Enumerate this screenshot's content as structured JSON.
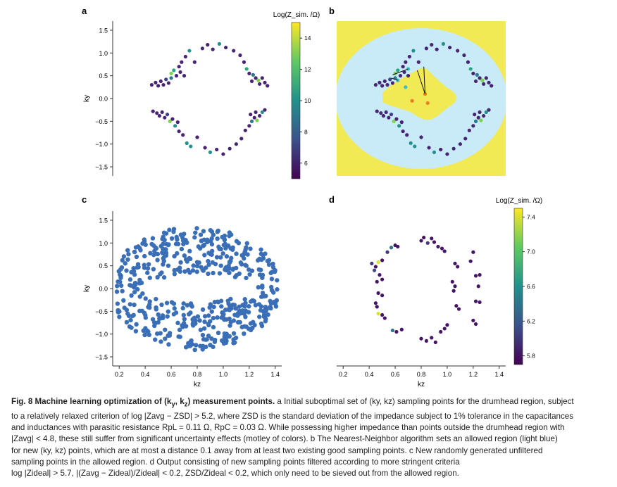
{
  "panels": {
    "a": {
      "label": "a",
      "colorbar_title": "Log(Z_sim. /Ω)",
      "colorbar_ticks": [
        "14",
        "12",
        "10",
        "8",
        "6"
      ]
    },
    "b": {
      "label": "b"
    },
    "c": {
      "label": "c"
    },
    "d": {
      "label": "d",
      "colorbar_title": "Log(Z_sim. /Ω)",
      "colorbar_ticks": [
        "7.4",
        "7.0",
        "6.6",
        "6.2",
        "5.8"
      ]
    }
  },
  "axes": {
    "ylabel": "ky",
    "xlabel": "kz",
    "yticks": [
      "1.5",
      "1.0",
      "0.5",
      "0.0",
      "−0.5",
      "−1.0",
      "−1.5"
    ],
    "xticks_c": [
      "0.2",
      "0.4",
      "0.6",
      "0.8",
      "1.0",
      "1.2",
      "1.4"
    ],
    "xticks_d": [
      "0.2",
      "0.4",
      "0.6",
      "0.8",
      "1.0",
      "1.2",
      "1.4"
    ]
  },
  "colors": {
    "allowed_region": "#c9ebf7",
    "background_region": "#f2ea55",
    "new_points": "#3a6fb8",
    "viridis_low": "#3b1f5e",
    "viridis_high": "#f6e61f"
  },
  "chart_data": [
    {
      "panel": "a",
      "type": "scatter",
      "title": "",
      "xlabel": "",
      "ylabel": "ky",
      "xlim": [
        0.15,
        1.45
      ],
      "ylim": [
        -1.7,
        1.7
      ],
      "color_scale": {
        "min": 5,
        "max": 15
      },
      "points": [
        {
          "x": 0.45,
          "y": 0.3,
          "c": 6
        },
        {
          "x": 0.48,
          "y": 0.35,
          "c": 6
        },
        {
          "x": 0.5,
          "y": 0.28,
          "c": 6
        },
        {
          "x": 0.52,
          "y": 0.38,
          "c": 6
        },
        {
          "x": 0.54,
          "y": 0.3,
          "c": 6
        },
        {
          "x": 0.56,
          "y": 0.42,
          "c": 7
        },
        {
          "x": 0.58,
          "y": 0.34,
          "c": 6
        },
        {
          "x": 0.6,
          "y": 0.45,
          "c": 9
        },
        {
          "x": 0.6,
          "y": 0.55,
          "c": 13
        },
        {
          "x": 0.62,
          "y": 0.62,
          "c": 11
        },
        {
          "x": 0.64,
          "y": 0.5,
          "c": 6
        },
        {
          "x": 0.66,
          "y": 0.7,
          "c": 6
        },
        {
          "x": 0.67,
          "y": 0.58,
          "c": 6
        },
        {
          "x": 0.68,
          "y": 0.8,
          "c": 6
        },
        {
          "x": 0.7,
          "y": 0.5,
          "c": 6
        },
        {
          "x": 0.71,
          "y": 0.92,
          "c": 6
        },
        {
          "x": 0.74,
          "y": 1.05,
          "c": 10
        },
        {
          "x": 0.78,
          "y": 0.8,
          "c": 6
        },
        {
          "x": 0.84,
          "y": 1.1,
          "c": 6
        },
        {
          "x": 0.88,
          "y": 1.18,
          "c": 6
        },
        {
          "x": 0.92,
          "y": 1.08,
          "c": 6
        },
        {
          "x": 0.97,
          "y": 1.2,
          "c": 10
        },
        {
          "x": 1.02,
          "y": 1.12,
          "c": 6
        },
        {
          "x": 1.08,
          "y": 1.05,
          "c": 6
        },
        {
          "x": 1.13,
          "y": 0.95,
          "c": 6
        },
        {
          "x": 1.16,
          "y": 0.8,
          "c": 6
        },
        {
          "x": 1.18,
          "y": 0.65,
          "c": 11
        },
        {
          "x": 1.2,
          "y": 0.55,
          "c": 6
        },
        {
          "x": 1.23,
          "y": 0.52,
          "c": 9
        },
        {
          "x": 1.25,
          "y": 0.45,
          "c": 6
        },
        {
          "x": 1.27,
          "y": 0.4,
          "c": 13
        },
        {
          "x": 1.3,
          "y": 0.45,
          "c": 6
        },
        {
          "x": 1.32,
          "y": 0.35,
          "c": 6
        },
        {
          "x": 1.34,
          "y": 0.28,
          "c": 6
        },
        {
          "x": 1.22,
          "y": 0.38,
          "c": 6
        },
        {
          "x": 1.28,
          "y": 0.32,
          "c": 6
        },
        {
          "x": 0.46,
          "y": -0.28,
          "c": 6
        },
        {
          "x": 0.49,
          "y": -0.32,
          "c": 6
        },
        {
          "x": 0.51,
          "y": -0.38,
          "c": 6
        },
        {
          "x": 0.53,
          "y": -0.3,
          "c": 6
        },
        {
          "x": 0.55,
          "y": -0.42,
          "c": 6
        },
        {
          "x": 0.57,
          "y": -0.35,
          "c": 7
        },
        {
          "x": 0.59,
          "y": -0.5,
          "c": 13
        },
        {
          "x": 0.61,
          "y": -0.45,
          "c": 6
        },
        {
          "x": 0.63,
          "y": -0.6,
          "c": 10
        },
        {
          "x": 0.65,
          "y": -0.52,
          "c": 6
        },
        {
          "x": 0.66,
          "y": -0.72,
          "c": 6
        },
        {
          "x": 0.69,
          "y": -0.8,
          "c": 6
        },
        {
          "x": 0.72,
          "y": -0.98,
          "c": 10
        },
        {
          "x": 0.75,
          "y": -1.05,
          "c": 10
        },
        {
          "x": 0.8,
          "y": -0.85,
          "c": 6
        },
        {
          "x": 0.86,
          "y": -1.08,
          "c": 6
        },
        {
          "x": 0.9,
          "y": -1.18,
          "c": 10
        },
        {
          "x": 0.95,
          "y": -1.12,
          "c": 6
        },
        {
          "x": 1.0,
          "y": -1.22,
          "c": 6
        },
        {
          "x": 1.05,
          "y": -1.1,
          "c": 6
        },
        {
          "x": 1.1,
          "y": -1.0,
          "c": 6
        },
        {
          "x": 1.14,
          "y": -0.88,
          "c": 6
        },
        {
          "x": 1.17,
          "y": -0.7,
          "c": 6
        },
        {
          "x": 1.2,
          "y": -0.6,
          "c": 6
        },
        {
          "x": 1.22,
          "y": -0.5,
          "c": 9
        },
        {
          "x": 1.24,
          "y": -0.42,
          "c": 6
        },
        {
          "x": 1.26,
          "y": -0.48,
          "c": 13
        },
        {
          "x": 1.28,
          "y": -0.38,
          "c": 6
        },
        {
          "x": 1.3,
          "y": -0.3,
          "c": 10
        },
        {
          "x": 1.32,
          "y": -0.25,
          "c": 6
        },
        {
          "x": 1.25,
          "y": -0.3,
          "c": 6
        },
        {
          "x": 1.21,
          "y": -0.35,
          "c": 6
        }
      ]
    },
    {
      "panel": "b",
      "type": "scatter",
      "title": "",
      "xlabel": "",
      "ylabel": "",
      "xlim": [
        0.15,
        1.45
      ],
      "ylim": [
        -1.7,
        1.7
      ],
      "series": [
        {
          "name": "",
          "role": "existing points",
          "same_as_panel": "a"
        },
        {
          "name": "",
          "role": "new points",
          "points": [
            {
              "x": 0.7,
              "y": 0.65
            },
            {
              "x": 0.62,
              "y": 0.4
            },
            {
              "x": 0.68,
              "y": 0.25
            },
            {
              "x": 0.83,
              "y": 0.1
            },
            {
              "x": 0.73,
              "y": -0.05
            },
            {
              "x": 0.85,
              "y": -0.1
            }
          ]
        }
      ]
    },
    {
      "panel": "c",
      "type": "scatter",
      "title": "",
      "xlabel": "kz",
      "ylabel": "ky",
      "xlim": [
        0.15,
        1.45
      ],
      "ylim": [
        -1.7,
        1.7
      ],
      "xticks": [
        0.2,
        0.4,
        0.6,
        0.8,
        1.0,
        1.2,
        1.4
      ],
      "yticks": [
        1.5,
        1.0,
        0.5,
        0.0,
        -0.5,
        -1.0,
        -1.5
      ],
      "points_generated": "approximately 500 uniformly random points inside the allowed (light blue) region of panel b"
    },
    {
      "panel": "d",
      "type": "scatter",
      "title": "",
      "xlabel": "kz",
      "ylabel": "",
      "xlim": [
        0.15,
        1.45
      ],
      "ylim": [
        -1.7,
        1.7
      ],
      "xticks": [
        0.2,
        0.4,
        0.6,
        0.8,
        1.0,
        1.2,
        1.4
      ],
      "color_scale": {
        "min": 5.7,
        "max": 7.5
      },
      "points": [
        {
          "x": 0.42,
          "y": 0.55,
          "c": 6.0
        },
        {
          "x": 0.45,
          "y": 0.48,
          "c": 5.8
        },
        {
          "x": 0.44,
          "y": 0.4,
          "c": 6.1
        },
        {
          "x": 0.47,
          "y": 0.58,
          "c": 7.4
        },
        {
          "x": 0.5,
          "y": 0.62,
          "c": 5.8
        },
        {
          "x": 0.48,
          "y": 0.3,
          "c": 5.8
        },
        {
          "x": 0.46,
          "y": 0.15,
          "c": 5.8
        },
        {
          "x": 0.5,
          "y": 0.2,
          "c": 5.8
        },
        {
          "x": 0.47,
          "y": -0.1,
          "c": 5.8
        },
        {
          "x": 0.5,
          "y": -0.15,
          "c": 5.8
        },
        {
          "x": 0.45,
          "y": -0.32,
          "c": 5.8
        },
        {
          "x": 0.46,
          "y": -0.4,
          "c": 5.8
        },
        {
          "x": 0.47,
          "y": -0.55,
          "c": 7.4
        },
        {
          "x": 0.5,
          "y": -0.58,
          "c": 5.8
        },
        {
          "x": 0.52,
          "y": -0.65,
          "c": 5.8
        },
        {
          "x": 0.54,
          "y": 0.8,
          "c": 6.0
        },
        {
          "x": 0.57,
          "y": 0.9,
          "c": 6.4
        },
        {
          "x": 0.6,
          "y": 0.95,
          "c": 5.8
        },
        {
          "x": 0.62,
          "y": 0.92,
          "c": 5.8
        },
        {
          "x": 0.58,
          "y": -0.92,
          "c": 6.4
        },
        {
          "x": 0.61,
          "y": -0.95,
          "c": 5.8
        },
        {
          "x": 0.65,
          "y": -0.9,
          "c": 5.8
        },
        {
          "x": 0.8,
          "y": 1.05,
          "c": 5.8
        },
        {
          "x": 0.82,
          "y": 1.12,
          "c": 5.8
        },
        {
          "x": 0.85,
          "y": 1.0,
          "c": 6.0
        },
        {
          "x": 0.88,
          "y": 1.1,
          "c": 5.8
        },
        {
          "x": 0.9,
          "y": 1.02,
          "c": 5.8
        },
        {
          "x": 0.8,
          "y": -1.1,
          "c": 5.8
        },
        {
          "x": 0.84,
          "y": -1.15,
          "c": 5.8
        },
        {
          "x": 0.88,
          "y": -1.08,
          "c": 5.8
        },
        {
          "x": 0.91,
          "y": -1.18,
          "c": 5.8
        },
        {
          "x": 0.93,
          "y": 0.92,
          "c": 5.8
        },
        {
          "x": 0.96,
          "y": 0.88,
          "c": 5.8
        },
        {
          "x": 0.98,
          "y": 0.82,
          "c": 5.8
        },
        {
          "x": 0.95,
          "y": -0.95,
          "c": 5.8
        },
        {
          "x": 0.98,
          "y": -0.88,
          "c": 5.8
        },
        {
          "x": 1.0,
          "y": -0.8,
          "c": 5.8
        },
        {
          "x": 1.06,
          "y": 0.55,
          "c": 5.8
        },
        {
          "x": 1.08,
          "y": 0.48,
          "c": 5.8
        },
        {
          "x": 1.04,
          "y": 0.15,
          "c": 5.8
        },
        {
          "x": 1.06,
          "y": 0.05,
          "c": 5.8
        },
        {
          "x": 1.05,
          "y": -0.05,
          "c": 5.8
        },
        {
          "x": 1.07,
          "y": -0.38,
          "c": 5.8
        },
        {
          "x": 1.09,
          "y": -0.45,
          "c": 5.8
        },
        {
          "x": 1.2,
          "y": 0.8,
          "c": 5.8
        },
        {
          "x": 1.18,
          "y": 0.6,
          "c": 5.8
        },
        {
          "x": 1.22,
          "y": 0.28,
          "c": 5.8
        },
        {
          "x": 1.25,
          "y": 0.3,
          "c": 5.8
        },
        {
          "x": 1.24,
          "y": 0.05,
          "c": 5.8
        },
        {
          "x": 1.22,
          "y": -0.28,
          "c": 5.8
        },
        {
          "x": 1.25,
          "y": -0.3,
          "c": 5.8
        },
        {
          "x": 1.2,
          "y": -0.7,
          "c": 5.8
        },
        {
          "x": 1.22,
          "y": -0.78,
          "c": 5.8
        }
      ]
    }
  ],
  "caption": {
    "fig_label": "Fig. 8 Machine learning optimization of (k",
    "fig_label_sub1": "y",
    "fig_label_mid": ", k",
    "fig_label_sub2": "z",
    "fig_label_end": ") measurement points.",
    "lines": [
      "a Initial suboptimal set of (ky, kz) sampling points for the drumhead region, subject",
      "to a relatively relaxed criterion of log |Zavg − ZSD| > 5.2, where ZSD is the standard deviation of the impedance subject to 1% tolerance in the capacitances",
      "and inductances with parasitic resistance RpL = 0.11 Ω, RpC = 0.03 Ω. While possessing higher impedance than points outside the drumhead region with",
      "|Zavg| < 4.8, these still suffer from significant uncertainty effects (motley of colors). b The Nearest-Neighbor algorithm sets an allowed region (light blue)",
      "for new (ky, kz) points, which are at most a distance 0.1 away from at least two existing good sampling points. c New randomly generated unfiltered",
      "sampling points in the allowed region. d Output consisting of new sampling points filtered according to more stringent criteria",
      "log |Zideal| > 5.7,   |(Zavg − Zideal)/Zideal| < 0.2,   ZSD/Zideal < 0.2, which only need to be sieved out from the allowed region."
    ]
  }
}
